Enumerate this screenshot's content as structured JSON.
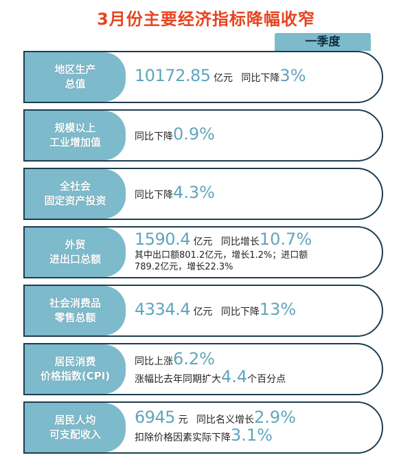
{
  "title": "3月份主要经济指标降幅收窄",
  "season_tab": "一季度",
  "rows": [
    {
      "label_lines": [
        "地区生产",
        "总值"
      ],
      "value": "10172.85",
      "unit": "亿元",
      "change_text": "同比下降",
      "change_value": "3%"
    },
    {
      "label_lines": [
        "规模以上",
        "工业增加值"
      ],
      "change_text": "同比下降",
      "change_value": "0.9%"
    },
    {
      "label_lines": [
        "全社会",
        "固定资产投资"
      ],
      "change_text": "同比下降",
      "change_value": "4.3%"
    },
    {
      "label_lines": [
        "外贸",
        "进出口总额"
      ],
      "value": "1590.4",
      "unit": "亿元",
      "change_text": "同比增长",
      "change_value": "10.7%",
      "detail_1": "其中出口额801.2亿元，增长1.2%；进口额",
      "detail_2": "789.2亿元，增长22.3%"
    },
    {
      "label_lines": [
        "社会消费品",
        "零售总额"
      ],
      "value": "4334.4",
      "unit": "亿元",
      "change_text": "同比下降",
      "change_value": "13%"
    },
    {
      "label_lines": [
        "居民消费",
        "价格指数(CPI)"
      ],
      "change_text": "同比上涨",
      "change_value": "6.2%",
      "extra_text": "涨幅比去年同期扩大",
      "extra_value": "4.4",
      "extra_unit": "个百分点"
    },
    {
      "label_lines": [
        "居民人均",
        "可支配收入"
      ],
      "value": "6945",
      "unit": "元",
      "change_text": "同比名义增长",
      "change_value": "2.9%",
      "extra_text": "扣除价格因素实际下降",
      "extra_value": "3.1%"
    }
  ]
}
